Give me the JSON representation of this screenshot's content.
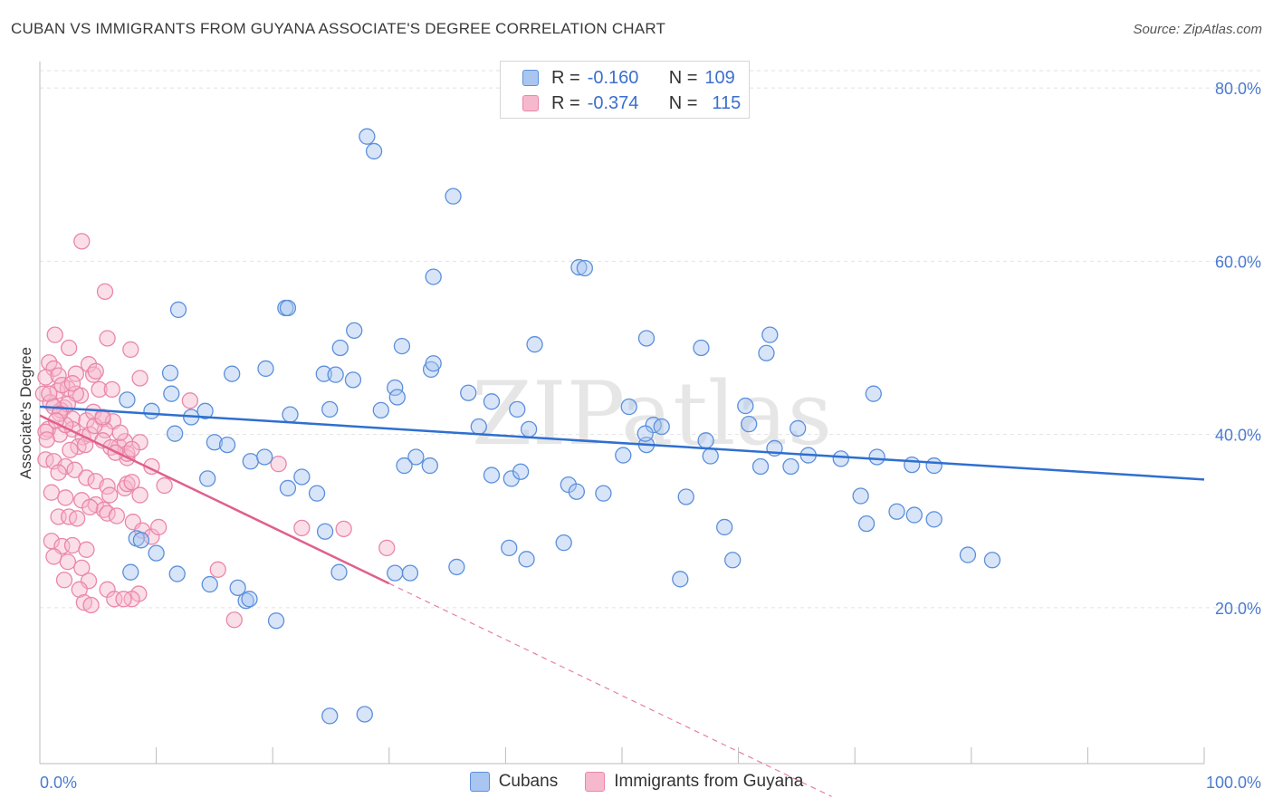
{
  "header": {
    "title": "CUBAN VS IMMIGRANTS FROM GUYANA ASSOCIATE'S DEGREE CORRELATION CHART",
    "source": "Source: ZipAtlas.com"
  },
  "legend": {
    "rows": [
      {
        "r_label": "R =",
        "r_value": "-0.160",
        "n_label": "N =",
        "n_value": "109"
      },
      {
        "r_label": "R =",
        "r_value": "-0.374",
        "n_label": "N =",
        "n_value": "115"
      }
    ]
  },
  "bottom_legend": [
    "Cubans",
    "Immigrants from Guyana"
  ],
  "watermark": "ZIPatlas",
  "chart_data": {
    "type": "scatter",
    "ylabel": "Associate's Degree",
    "xlabel": "",
    "xlim": [
      0,
      100
    ],
    "ylim": [
      2,
      82
    ],
    "x_tick_labels": [
      {
        "value": 0,
        "label": "0.0%"
      },
      {
        "value": 100,
        "label": "100.0%"
      }
    ],
    "y_tick_labels": [
      {
        "value": 20,
        "label": "20.0%"
      },
      {
        "value": 40,
        "label": "40.0%"
      },
      {
        "value": 60,
        "label": "60.0%"
      },
      {
        "value": 80,
        "label": "80.0%"
      }
    ],
    "grid": "horizontal dashed",
    "legend_position": "top-center",
    "colors": {
      "cubans_fill": "#a9c6f0",
      "cubans_stroke": "#5b8fdc",
      "cubans_line": "#2f6fd0",
      "guyana_fill": "#f6b8cd",
      "guyana_stroke": "#ea86a9",
      "guyana_line": "#e0608c",
      "tick_text": "#4a7bd0"
    },
    "series": [
      {
        "name": "Cubans",
        "trend": {
          "x0": 0,
          "y0": 43.2,
          "x1": 100,
          "y1": 34.8
        },
        "x": [
          28.1,
          28.7,
          35.5,
          33.8,
          46.3,
          46.8,
          11.9,
          21.1,
          21.3,
          27.0,
          62.7,
          52.1,
          42.5,
          31.1,
          56.8,
          62.4,
          33.6,
          11.2,
          16.5,
          19.4,
          24.4,
          25.4,
          26.9,
          30.5,
          36.8,
          38.8,
          50.6,
          60.6,
          71.6,
          24.9,
          29.3,
          9.6,
          13.0,
          21.5,
          41.0,
          52.7,
          53.4,
          60.9,
          65.1,
          37.7,
          42.0,
          57.2,
          52.1,
          63.1,
          50.1,
          57.6,
          66.0,
          68.8,
          71.9,
          74.9,
          76.8,
          64.5,
          7.5,
          11.3,
          14.2,
          11.6,
          15.0,
          16.1,
          18.1,
          19.3,
          32.3,
          33.5,
          38.8,
          40.5,
          41.3,
          45.4,
          46.1,
          48.4,
          55.5,
          70.5,
          71.0,
          73.6,
          75.1,
          76.8,
          58.8,
          24.5,
          8.3,
          8.7,
          10.0,
          7.8,
          11.8,
          14.6,
          17.0,
          17.7,
          18.0,
          20.3,
          30.5,
          40.3,
          41.8,
          45.0,
          25.7,
          31.8,
          35.8,
          55.0,
          59.5,
          79.7,
          81.8,
          27.9,
          24.9,
          14.4,
          31.3,
          61.9,
          52.0,
          21.3,
          23.8,
          22.5,
          33.8,
          30.7,
          25.8
        ],
        "y": [
          74.4,
          72.7,
          67.5,
          58.2,
          59.3,
          59.2,
          54.4,
          54.6,
          54.6,
          52.0,
          51.5,
          51.1,
          50.4,
          50.2,
          50.0,
          49.4,
          47.5,
          47.1,
          47.0,
          47.6,
          47.0,
          46.9,
          46.3,
          45.4,
          44.8,
          43.8,
          43.2,
          43.3,
          44.7,
          42.9,
          42.8,
          42.7,
          42.0,
          42.3,
          42.9,
          41.1,
          40.9,
          41.2,
          40.7,
          40.9,
          40.6,
          39.3,
          38.8,
          38.4,
          37.6,
          37.5,
          37.6,
          37.2,
          37.4,
          36.5,
          36.4,
          36.3,
          44.0,
          44.7,
          42.7,
          40.1,
          39.1,
          38.8,
          36.9,
          37.4,
          37.4,
          36.4,
          35.3,
          34.9,
          35.7,
          34.2,
          33.4,
          33.2,
          32.8,
          32.9,
          29.7,
          31.1,
          30.7,
          30.2,
          29.3,
          28.8,
          28.0,
          27.8,
          26.3,
          24.1,
          23.9,
          22.7,
          22.3,
          20.8,
          21.0,
          18.5,
          24.0,
          26.9,
          25.6,
          27.5,
          24.1,
          24.0,
          24.7,
          23.3,
          25.5,
          26.1,
          25.5,
          7.7,
          7.5,
          34.9,
          36.4,
          36.3,
          40.1,
          33.8,
          33.2,
          35.1,
          48.2,
          44.3,
          50.0
        ]
      },
      {
        "name": "Immigrants from Guyana",
        "trend": {
          "x0": 0,
          "y0": 42.2,
          "x1": 30,
          "y1": 22.8,
          "dash_to_x": 68,
          "dash_to_y": -1.8
        },
        "x": [
          3.6,
          5.6,
          1.3,
          5.8,
          7.8,
          2.5,
          4.2,
          4.6,
          0.8,
          1.2,
          0.5,
          1.6,
          1.5,
          2.4,
          3.5,
          1.9,
          0.3,
          3.1,
          5.1,
          6.2,
          0.9,
          2.1,
          1.8,
          2.8,
          4.0,
          4.6,
          5.4,
          6.3,
          0.7,
          1.7,
          2.8,
          3.7,
          4.3,
          5.6,
          6.8,
          8.6,
          0.5,
          1.2,
          2.2,
          1.6,
          3.0,
          4.0,
          4.8,
          5.8,
          6.0,
          7.3,
          7.5,
          7.9,
          8.6,
          1.0,
          2.2,
          3.6,
          4.8,
          5.5,
          1.6,
          2.5,
          3.2,
          4.3,
          5.8,
          6.6,
          8.0,
          8.8,
          9.6,
          10.2,
          1.0,
          1.9,
          2.8,
          4.0,
          1.2,
          2.4,
          3.6,
          2.1,
          4.2,
          3.4,
          5.8,
          8.5,
          7.9,
          6.4,
          7.2,
          3.8,
          4.4,
          20.5,
          22.5,
          26.1,
          29.8,
          16.7,
          10.7,
          15.3,
          7.5,
          3.1,
          2.8,
          0.8,
          1.2,
          2.2,
          4.7,
          5.4,
          6.1,
          7.3,
          3.3,
          3.9,
          7.5,
          9.6,
          0.5,
          0.6,
          2.6,
          2.4,
          1.7,
          5.4,
          1.4,
          8.6,
          4.8,
          6.9,
          7.9,
          6.5,
          12.9
        ],
        "y": [
          62.3,
          56.5,
          51.5,
          51.1,
          49.8,
          50.0,
          48.1,
          46.9,
          48.3,
          47.6,
          46.6,
          46.8,
          45.0,
          45.3,
          44.5,
          45.7,
          44.7,
          44.7,
          45.2,
          45.2,
          43.7,
          43.1,
          42.8,
          41.8,
          41.6,
          42.6,
          41.8,
          41.5,
          40.6,
          40.0,
          40.6,
          39.7,
          40.0,
          40.5,
          38.6,
          39.1,
          37.1,
          36.9,
          36.3,
          35.6,
          35.9,
          35.0,
          34.6,
          34.0,
          33.0,
          33.8,
          34.3,
          34.5,
          33.0,
          33.3,
          32.7,
          32.4,
          31.9,
          31.3,
          30.5,
          30.5,
          30.3,
          31.6,
          30.9,
          30.6,
          29.9,
          28.9,
          28.2,
          29.3,
          27.7,
          27.1,
          27.2,
          26.7,
          25.9,
          25.3,
          24.6,
          23.2,
          23.1,
          22.1,
          22.1,
          21.6,
          21.0,
          21.0,
          21.0,
          20.6,
          20.3,
          36.6,
          29.2,
          29.1,
          26.9,
          18.6,
          34.1,
          24.4,
          37.3,
          47.0,
          45.9,
          44.7,
          43.2,
          41.1,
          41.0,
          39.3,
          38.5,
          39.2,
          38.6,
          38.8,
          37.8,
          36.3,
          40.3,
          39.4,
          38.2,
          43.5,
          42.4,
          42.0,
          41.6,
          46.5,
          47.3,
          40.2,
          38.3,
          37.9,
          43.9
        ]
      }
    ]
  }
}
